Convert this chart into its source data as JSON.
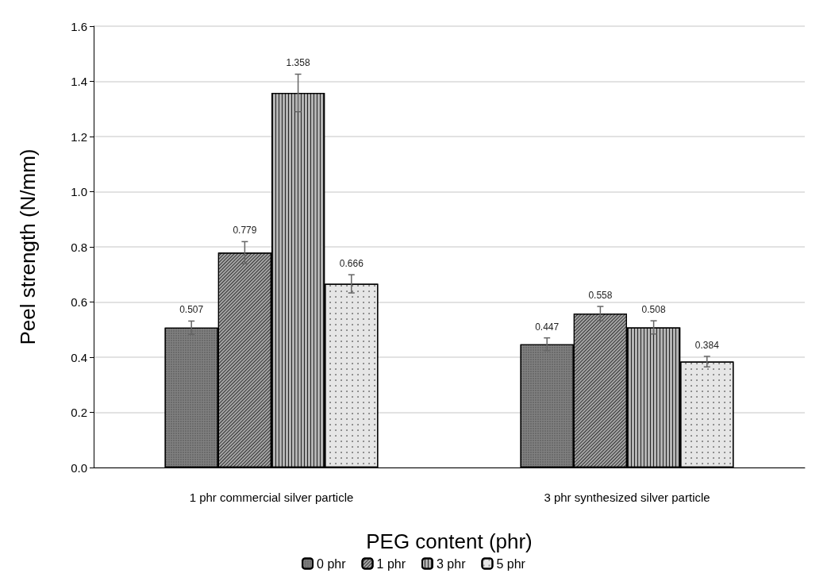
{
  "chart_data": {
    "type": "bar",
    "xlabel": "PEG content (phr)",
    "ylabel": "Peel strength (N/mm)",
    "categories": [
      "1 phr commercial silver particle",
      "3 phr synthesized silver particle"
    ],
    "series": [
      {
        "name": "0 phr",
        "color": "#808080",
        "values": [
          0.507,
          0.447
        ],
        "errors": [
          0.024,
          0.023
        ]
      },
      {
        "name": "1 phr",
        "color": "#a6a6a6",
        "values": [
          0.779,
          0.558
        ],
        "errors": [
          0.04,
          0.026
        ]
      },
      {
        "name": "3 phr",
        "color": "#b4b4b4",
        "values": [
          1.358,
          0.508
        ],
        "errors": [
          0.068,
          0.024
        ]
      },
      {
        "name": "5 phr",
        "color": "#e6e6e6",
        "values": [
          0.666,
          0.384
        ],
        "errors": [
          0.033,
          0.019
        ]
      }
    ],
    "ylim": [
      0,
      1.6
    ],
    "yticks": [
      {
        "value": 0,
        "label": "0.0"
      },
      {
        "value": 0.2,
        "label": "0.2"
      },
      {
        "value": 0.4,
        "label": "0.4"
      },
      {
        "value": 0.6,
        "label": "0.6"
      },
      {
        "value": 0.8,
        "label": "0.8"
      },
      {
        "value": 1,
        "label": "1.0"
      },
      {
        "value": 1.2,
        "label": "1.2"
      },
      {
        "value": 1.4,
        "label": "1.4"
      },
      {
        "value": 1.6,
        "label": "1.6"
      }
    ],
    "grid": "y",
    "legend": "bottom",
    "data_labels": true
  }
}
